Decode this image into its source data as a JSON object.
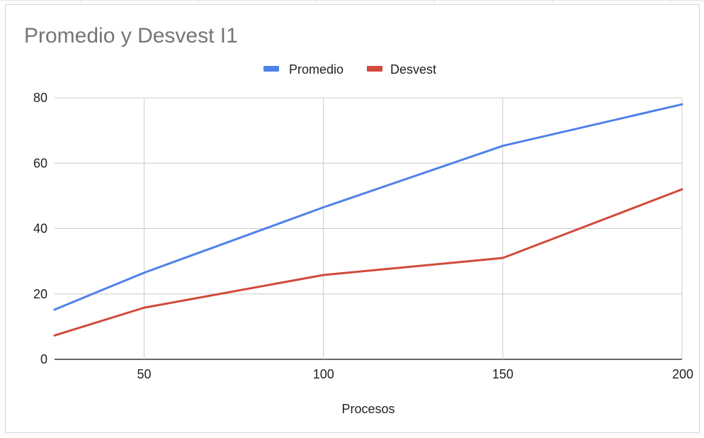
{
  "chart_data": {
    "type": "line",
    "title": "Promedio y Desvest I1",
    "xlabel": "Procesos",
    "ylabel": "",
    "x": [
      25,
      50,
      100,
      150,
      200
    ],
    "xlim": [
      25,
      200
    ],
    "ylim": [
      0,
      80
    ],
    "x_ticks": [
      "50",
      "100",
      "150",
      "200"
    ],
    "x_tick_values": [
      50,
      100,
      150,
      200
    ],
    "y_ticks": [
      "0",
      "20",
      "40",
      "60",
      "80"
    ],
    "y_tick_values": [
      0,
      20,
      40,
      60,
      80
    ],
    "grid": true,
    "legend_position": "top",
    "series": [
      {
        "name": "Promedio",
        "color": "#4f81e8",
        "values": [
          15.2,
          26.5,
          46.5,
          65.3,
          78.0
        ]
      },
      {
        "name": "Desvest",
        "color": "#d14a3b",
        "values": [
          7.3,
          15.8,
          25.8,
          31.0,
          52.0
        ]
      }
    ]
  }
}
